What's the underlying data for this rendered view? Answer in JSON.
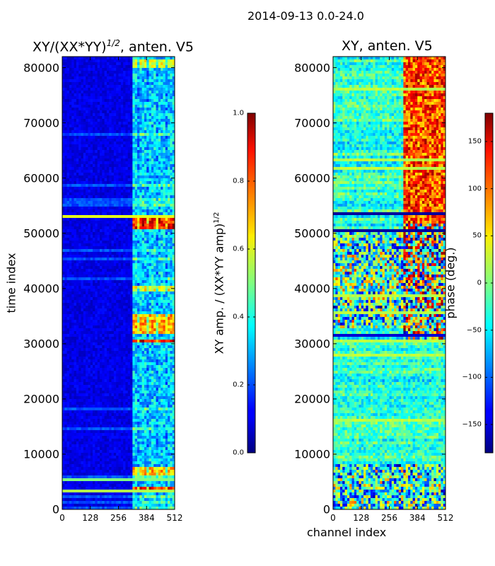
{
  "figure_title": "2014-09-13 0.0-24.0",
  "chart_data": [
    {
      "type": "heatmap",
      "title_main": "XY/(XX*YY)",
      "title_sup": "1/2",
      "title_tail": ", anten. V5",
      "xlabel": "",
      "ylabel": "time index",
      "x_range": [
        0,
        512
      ],
      "y_range": [
        0,
        82000
      ],
      "x_ticks": [
        "0",
        "128",
        "256",
        "384",
        "512"
      ],
      "y_ticks": [
        "0",
        "10000",
        "20000",
        "30000",
        "40000",
        "50000",
        "60000",
        "70000",
        "80000"
      ],
      "colorbar": {
        "label": "XY amp. / (XX*YY amp)",
        "label_sup": "1/2",
        "range": [
          0.0,
          1.0
        ],
        "ticks": [
          "0.0",
          "0.2",
          "0.4",
          "0.6",
          "0.8",
          "1.0"
        ],
        "colormap": "jet"
      },
      "features": {
        "background_level": 0.1,
        "active_channel_range": [
          325,
          512
        ],
        "active_level": 0.35,
        "hot_bands": [
          {
            "time": [
              3400,
              4200
            ],
            "level": 0.85
          },
          {
            "time": [
              6000,
              7600
            ],
            "level": 0.7
          },
          {
            "time": [
              30000,
              31000
            ],
            "level": 0.9
          },
          {
            "time": [
              32000,
              35500
            ],
            "level": 0.72
          },
          {
            "time": [
              39500,
              40500
            ],
            "level": 0.62
          },
          {
            "time": [
              50800,
              53000
            ],
            "level": 0.88
          },
          {
            "time": [
              80000,
              81500
            ],
            "level": 0.6
          }
        ],
        "full_width_lines": [
          {
            "time": 3400,
            "level": 0.55
          },
          {
            "time": 5400,
            "level": 0.5
          },
          {
            "time": 53200,
            "level": 0.6
          }
        ]
      }
    },
    {
      "type": "heatmap",
      "title": "XY, anten. V5",
      "xlabel": "channel index",
      "ylabel": "",
      "x_range": [
        0,
        512
      ],
      "y_range": [
        0,
        82000
      ],
      "x_ticks": [
        "0",
        "128",
        "256",
        "384",
        "512"
      ],
      "y_ticks": [
        "0",
        "10000",
        "20000",
        "30000",
        "40000",
        "50000",
        "60000",
        "70000",
        "80000"
      ],
      "colorbar": {
        "label": "phase (deg.)",
        "range": [
          -180,
          180
        ],
        "ticks": [
          "−150",
          "−100",
          "−50",
          "0",
          "50",
          "100",
          "150"
        ],
        "colormap": "jet"
      },
      "features": {
        "background_phase": -30,
        "active_channel_range": [
          325,
          512
        ],
        "active_phase": 110,
        "noisy_bands": [
          [
            0,
            8000
          ],
          [
            33000,
            50000
          ]
        ],
        "dark_lines": [
          {
            "time": 31500,
            "phase": -150
          },
          {
            "time": 50500,
            "phase": -170
          },
          {
            "time": 53500,
            "phase": -170
          }
        ]
      }
    }
  ]
}
